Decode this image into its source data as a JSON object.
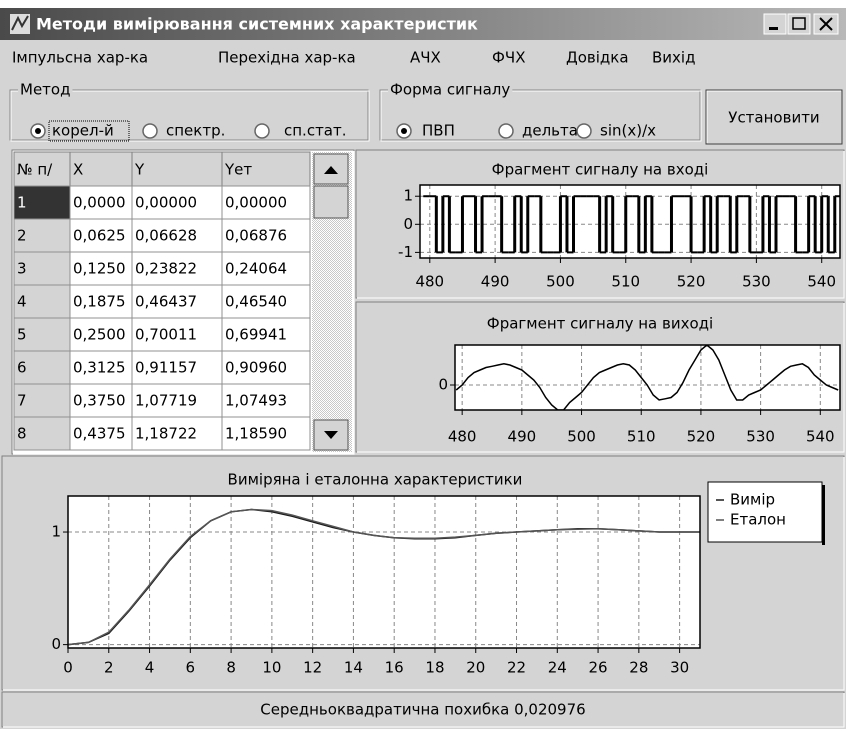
{
  "window": {
    "title": "Методи вимірювання системних характеристик"
  },
  "menu": [
    "Імпульсна хар-ка",
    "Перехідна хар-ка",
    "АЧХ",
    "ФЧХ",
    "Довідка",
    "Вихід"
  ],
  "method_group": {
    "label": "Метод",
    "options": [
      "корел-й",
      "спектр.",
      "сп.стат."
    ],
    "selected": 0
  },
  "signal_group": {
    "label": "Форма сигналу",
    "options": [
      "ПВП",
      "дельта",
      "sin(x)/x"
    ],
    "selected": 0
  },
  "button": {
    "label": "Установити"
  },
  "table": {
    "headers": [
      "№ п/",
      "X",
      "Y",
      "Yет"
    ],
    "rows": [
      [
        "1",
        "0,0000",
        "0,00000",
        "0,00000"
      ],
      [
        "2",
        "0,0625",
        "0,06628",
        "0,06876"
      ],
      [
        "3",
        "0,1250",
        "0,23822",
        "0,24064"
      ],
      [
        "4",
        "0,1875",
        "0,46437",
        "0,46540"
      ],
      [
        "5",
        "0,2500",
        "0,70011",
        "0,69941"
      ],
      [
        "6",
        "0,3125",
        "0,91157",
        "0,90960"
      ],
      [
        "7",
        "0,3750",
        "1,07719",
        "1,07493"
      ],
      [
        "8",
        "0,4375",
        "1,18722",
        "1,18590"
      ]
    ]
  },
  "chart_data": [
    {
      "type": "step",
      "title": "Фрагмент сигналу на вході",
      "color": "#000000",
      "grid": true,
      "x": [
        479,
        480,
        481,
        482,
        483,
        484,
        485,
        486,
        487,
        488,
        489,
        490,
        491,
        492,
        493,
        494,
        495,
        496,
        497,
        498,
        499,
        500,
        501,
        502,
        503,
        504,
        505,
        506,
        507,
        508,
        509,
        510,
        511,
        512,
        513,
        514,
        515,
        516,
        517,
        518,
        519,
        520,
        521,
        522,
        523,
        524,
        525,
        526,
        527,
        528,
        529,
        530,
        531,
        532,
        533,
        534,
        535,
        536,
        537,
        538,
        539,
        540,
        541,
        542
      ],
      "values": [
        1,
        1,
        -1,
        1,
        -1,
        -1,
        1,
        1,
        -1,
        1,
        1,
        1,
        -1,
        -1,
        1,
        -1,
        1,
        1,
        -1,
        -1,
        -1,
        1,
        -1,
        1,
        1,
        1,
        1,
        -1,
        1,
        -1,
        -1,
        1,
        1,
        -1,
        1,
        -1,
        -1,
        -1,
        1,
        1,
        1,
        -1,
        -1,
        1,
        -1,
        1,
        1,
        -1,
        1,
        1,
        -1,
        -1,
        1,
        -1,
        1,
        1,
        1,
        -1,
        -1,
        1,
        -1,
        1,
        -1,
        1
      ],
      "xlim": [
        478.5,
        542.8
      ],
      "ylim": [
        -1.2,
        1.4
      ],
      "xticks": [
        480,
        490,
        500,
        510,
        520,
        530,
        540
      ],
      "yticks": [
        1,
        0,
        -1
      ]
    },
    {
      "type": "line",
      "title": "Фрагмент сигналу на виході",
      "color": "#000000",
      "grid": true,
      "x": [
        479,
        480,
        481,
        482,
        483,
        484,
        485,
        486,
        487,
        488,
        489,
        490,
        491,
        492,
        493,
        494,
        495,
        496,
        497,
        498,
        499,
        500,
        501,
        502,
        503,
        504,
        505,
        506,
        507,
        508,
        509,
        510,
        511,
        512,
        513,
        514,
        515,
        516,
        517,
        518,
        519,
        520,
        521,
        522,
        523,
        524,
        525,
        526,
        527,
        528,
        529,
        530,
        531,
        532,
        533,
        534,
        535,
        536,
        537,
        538,
        539,
        540,
        541,
        542,
        543
      ],
      "values": [
        -0.2,
        0.0,
        0.3,
        0.5,
        0.6,
        0.7,
        0.75,
        0.8,
        0.85,
        0.8,
        0.7,
        0.6,
        0.4,
        0.2,
        -0.1,
        -0.5,
        -0.8,
        -1.0,
        -1.0,
        -0.7,
        -0.5,
        -0.3,
        0.0,
        0.3,
        0.5,
        0.6,
        0.7,
        0.8,
        0.85,
        0.8,
        0.6,
        0.3,
        0.0,
        -0.4,
        -0.6,
        -0.55,
        -0.5,
        -0.3,
        0.1,
        0.6,
        1.0,
        1.4,
        1.6,
        1.4,
        1.0,
        0.4,
        -0.2,
        -0.6,
        -0.6,
        -0.4,
        -0.3,
        -0.2,
        0.0,
        0.2,
        0.4,
        0.6,
        0.75,
        0.8,
        0.85,
        0.7,
        0.4,
        0.2,
        0.0,
        -0.1,
        -0.2
      ],
      "xlim": [
        478.8,
        543.3
      ],
      "ylim": [
        -1,
        1.6
      ],
      "xticks": [
        480,
        490,
        500,
        510,
        520,
        530,
        540
      ],
      "yticks": [
        0
      ]
    },
    {
      "type": "line",
      "title": "Виміряна  і еталонна характеристики",
      "grid": true,
      "legend": "top-right",
      "x": [
        0,
        1,
        2,
        3,
        4,
        5,
        6,
        7,
        8,
        9,
        10,
        11,
        12,
        13,
        14,
        15,
        16,
        17,
        18,
        19,
        20,
        21,
        22,
        23,
        24,
        25,
        26,
        27,
        28,
        29,
        30,
        31
      ],
      "series": [
        {
          "name": "Вимір",
          "color": "#1a1a1a",
          "values": [
            0,
            0.02,
            0.1,
            0.3,
            0.52,
            0.75,
            0.95,
            1.1,
            1.18,
            1.2,
            1.18,
            1.14,
            1.09,
            1.04,
            1.0,
            0.97,
            0.95,
            0.94,
            0.94,
            0.95,
            0.97,
            0.99,
            1.0,
            1.01,
            1.02,
            1.03,
            1.03,
            1.02,
            1.01,
            1.0,
            1.0,
            1.0
          ]
        },
        {
          "name": "Еталон",
          "color": "#555555",
          "values": [
            0,
            0.02,
            0.11,
            0.31,
            0.53,
            0.76,
            0.96,
            1.1,
            1.18,
            1.2,
            1.19,
            1.15,
            1.1,
            1.05,
            1.0,
            0.97,
            0.95,
            0.945,
            0.945,
            0.955,
            0.97,
            0.99,
            1.0,
            1.01,
            1.02,
            1.025,
            1.03,
            1.02,
            1.01,
            1.0,
            1.0,
            1.0
          ]
        }
      ],
      "xlim": [
        0,
        31
      ],
      "ylim": [
        -0.03,
        1.32
      ],
      "xticks": [
        0,
        2,
        4,
        6,
        8,
        10,
        12,
        14,
        16,
        18,
        20,
        22,
        24,
        26,
        28,
        30
      ],
      "yticks": [
        0,
        1
      ]
    }
  ],
  "status": "Середньоквадратична похибка 0,020976"
}
